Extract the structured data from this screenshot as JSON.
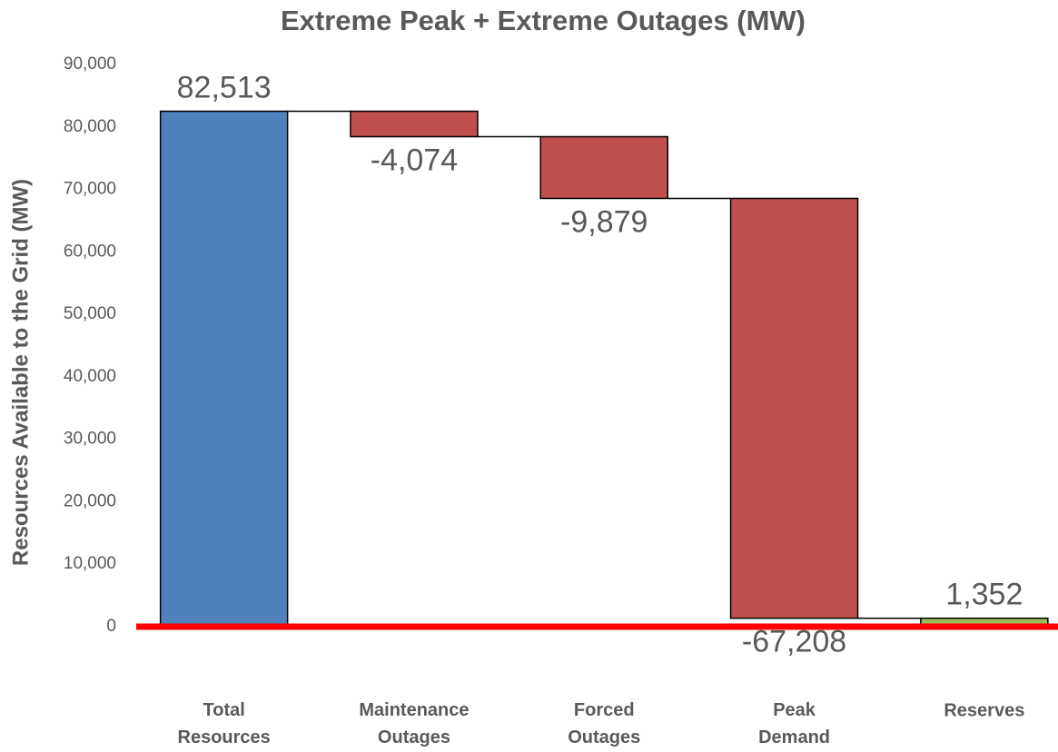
{
  "chart_data": {
    "type": "waterfall",
    "title": "Extreme Peak + Extreme Outages (MW)",
    "y_label": "Resources Available to the Grid (MW)",
    "categories": [
      "Total Resources",
      "Maintenance Outages",
      "Forced Outages",
      "Peak Demand",
      "Reserves"
    ],
    "values": [
      82513,
      -4074,
      -9879,
      -67208,
      1352
    ],
    "value_labels": [
      "82,513",
      "-4,074",
      "-9,879",
      "-67,208",
      "1,352"
    ],
    "totals": [
      true,
      false,
      false,
      false,
      true
    ],
    "colors": [
      "#4f81bd",
      "#c0504d",
      "#c0504d",
      "#c0504d",
      "#9bbb59"
    ],
    "ylim": [
      0,
      90000
    ],
    "yticks": [
      0,
      {
        "value": 10000,
        "label": "10,000"
      },
      {
        "value": 20000,
        "label": "20,000"
      },
      {
        "value": 30000,
        "label": "30,000"
      },
      {
        "value": 40000,
        "label": "40,000"
      },
      {
        "value": 50000,
        "label": "50,000"
      },
      {
        "value": 60000,
        "label": "60,000"
      },
      {
        "value": 70000,
        "label": "70,000"
      },
      {
        "value": 80000,
        "label": "80,000"
      },
      {
        "value": 90000,
        "label": "90,000"
      }
    ],
    "zero_line_color": "#ff0000"
  }
}
